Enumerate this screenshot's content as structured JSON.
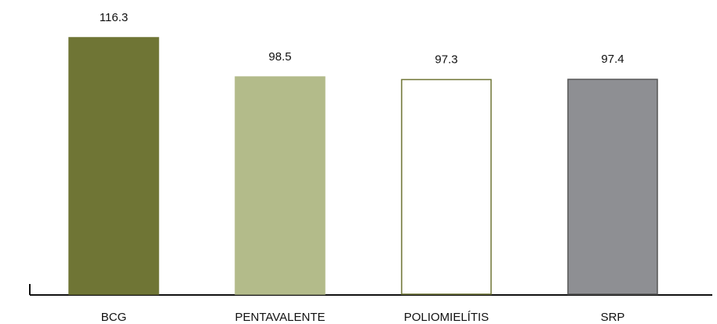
{
  "chart_data": {
    "type": "bar",
    "categories": [
      "BCG",
      "PENTAVALENTE",
      "POLIOMIELÍTIS",
      "SRP"
    ],
    "values": [
      116.3,
      98.5,
      97.3,
      97.4
    ],
    "colors": [
      "#6f7535",
      "#b3bb8a",
      "#ffffff",
      "#8e8f93"
    ],
    "edgecolors": [
      "#6f7535",
      "#b3bb8a",
      "#6f7535",
      "#555555"
    ]
  }
}
